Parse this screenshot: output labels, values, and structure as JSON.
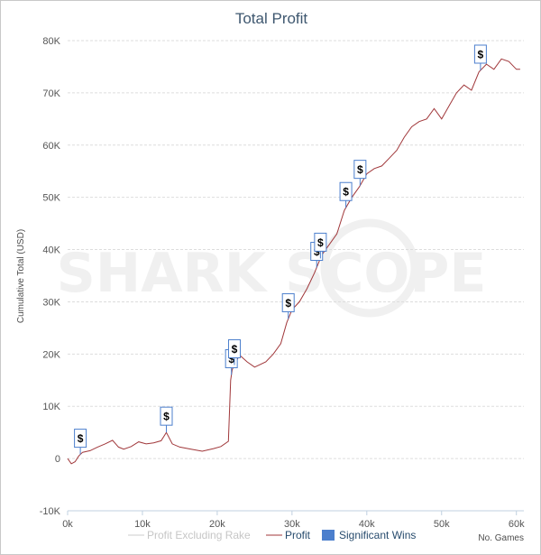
{
  "watermark": "SHARK SCOPE",
  "chart_data": {
    "type": "line",
    "title": "Total Profit",
    "xlabel": "No. Games",
    "ylabel": "Cumulative Total (USD)",
    "xlim": [
      0,
      61000
    ],
    "ylim": [
      -10000,
      80000
    ],
    "xticks": [
      "0k",
      "10k",
      "20k",
      "30k",
      "40k",
      "50k",
      "60k"
    ],
    "xtick_values": [
      0,
      10000,
      20000,
      30000,
      40000,
      50000,
      60000
    ],
    "yticks": [
      "-10K",
      "0",
      "10K",
      "20K",
      "30K",
      "40K",
      "50K",
      "60K",
      "70K",
      "80K"
    ],
    "ytick_values": [
      -10000,
      0,
      10000,
      20000,
      30000,
      40000,
      50000,
      60000,
      70000,
      80000
    ],
    "grid": true,
    "legend_position": "bottom",
    "series": [
      {
        "name": "Profit Excluding Rake",
        "color": "#cccccc",
        "visible": false,
        "x": [],
        "y": []
      },
      {
        "name": "Profit",
        "color": "#a0373a",
        "x": [
          0,
          500,
          1000,
          1500,
          2000,
          3000,
          4000,
          5000,
          6000,
          6800,
          7500,
          8500,
          9500,
          10500,
          11500,
          12500,
          13200,
          14000,
          15000,
          16500,
          18000,
          19500,
          20500,
          21500,
          21800,
          22000,
          22500,
          23000,
          24000,
          25000,
          26500,
          27500,
          28500,
          29300,
          30000,
          31000,
          32000,
          33000,
          34000,
          35000,
          36000,
          37000,
          38000,
          39000,
          40000,
          41000,
          42000,
          43000,
          44000,
          45000,
          46000,
          47000,
          48000,
          49000,
          50000,
          51000,
          52000,
          53000,
          54000,
          55000,
          56000,
          57000,
          58000,
          59000,
          60000,
          60500
        ],
        "y": [
          0,
          -1000,
          -600,
          500,
          1200,
          1500,
          2200,
          2800,
          3500,
          2200,
          1800,
          2300,
          3200,
          2800,
          3000,
          3400,
          5000,
          2800,
          2200,
          1800,
          1400,
          1900,
          2300,
          3300,
          15000,
          17000,
          18500,
          19800,
          18500,
          17500,
          18500,
          20000,
          22000,
          26000,
          28500,
          30000,
          32500,
          35500,
          39000,
          41000,
          43000,
          47500,
          50000,
          52000,
          54500,
          55500,
          56000,
          57500,
          59000,
          61500,
          63500,
          64500,
          65000,
          67000,
          65000,
          67500,
          70000,
          71500,
          70500,
          74000,
          75500,
          74500,
          76500,
          76000,
          74500,
          74500
        ]
      }
    ],
    "significant_wins": {
      "name": "Significant Wins",
      "color": "#4c7fcd",
      "label": "$",
      "x": [
        1700,
        13200,
        21900,
        22300,
        29500,
        33300,
        33800,
        37200,
        39100,
        55200
      ]
    }
  }
}
